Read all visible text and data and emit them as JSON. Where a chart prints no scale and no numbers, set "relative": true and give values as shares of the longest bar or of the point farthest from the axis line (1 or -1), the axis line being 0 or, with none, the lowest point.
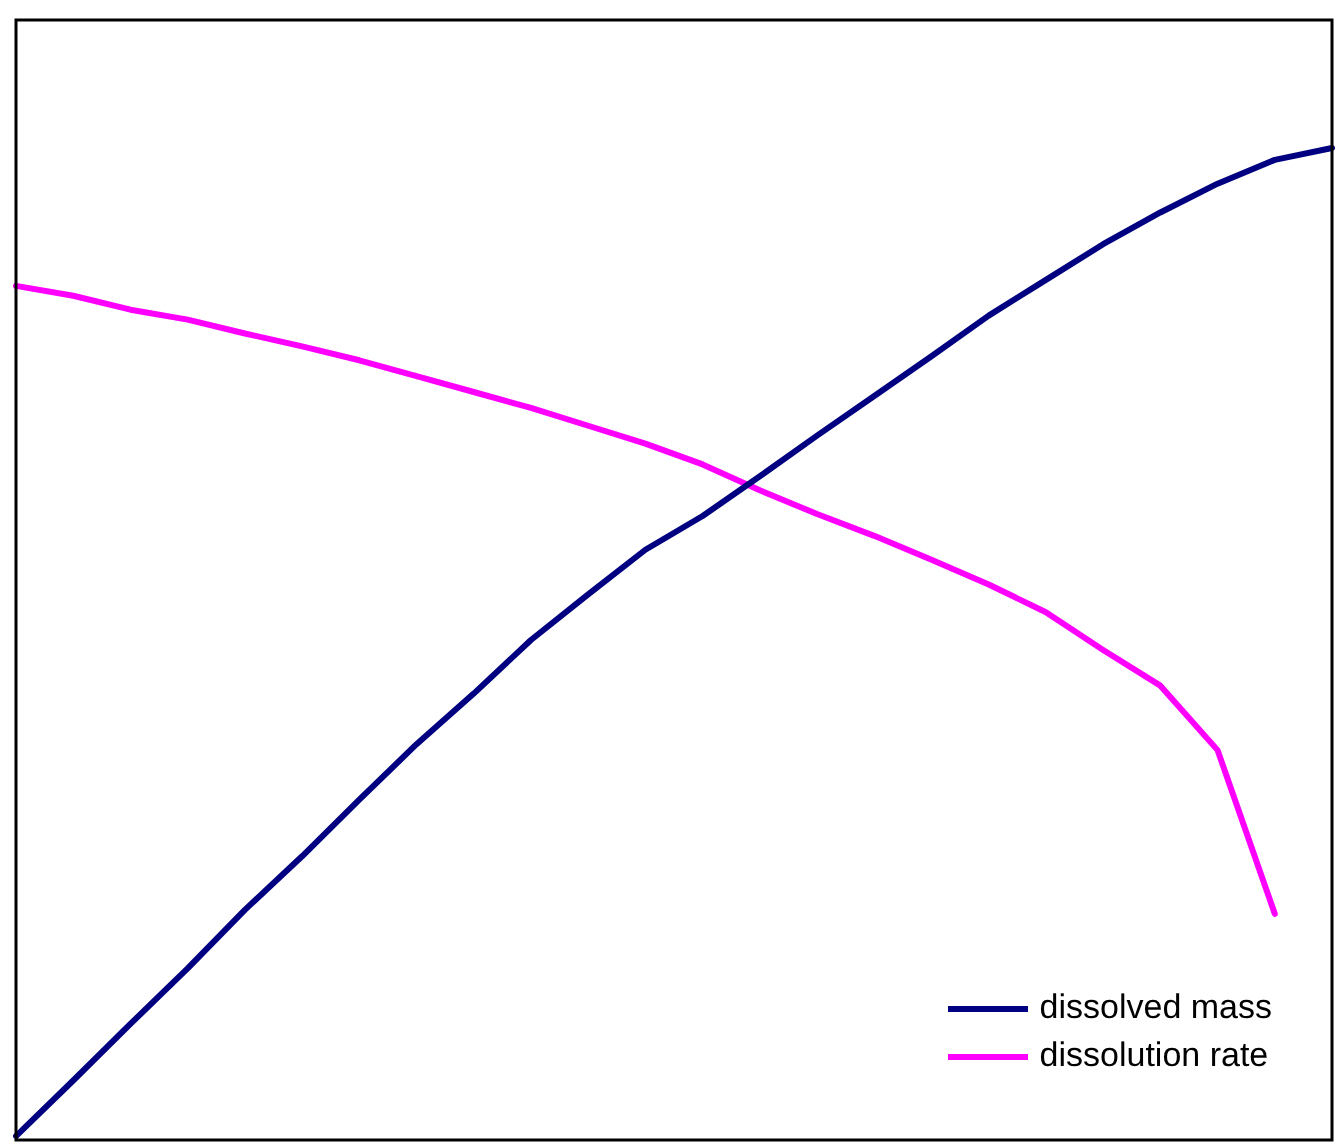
{
  "chart_data": {
    "type": "line",
    "relative": true,
    "legend": "bottom right",
    "marker": "none",
    "line_style": "solid",
    "categories": [
      null,
      null,
      null,
      null,
      null,
      null,
      null,
      null,
      null,
      null,
      null,
      null,
      null,
      null,
      null,
      null,
      null,
      null,
      null,
      null,
      null,
      null,
      null,
      null
    ],
    "series": [
      {
        "name": "dissolved mass",
        "color": "#000080",
        "values": [
          0.004,
          0.06,
          0.117,
          0.173,
          0.232,
          0.286,
          0.343,
          0.399,
          0.45,
          0.504,
          0.55,
          0.595,
          0.629,
          0.669,
          0.71,
          0.75,
          0.79,
          0.831,
          0.867,
          0.903,
          0.935,
          0.964,
          0.988,
          1
        ]
      },
      {
        "name": "dissolution rate",
        "color": "#ff00ff",
        "values": [
          0.861,
          0.851,
          0.837,
          0.827,
          0.813,
          0.8,
          0.786,
          0.77,
          0.754,
          0.738,
          0.72,
          0.702,
          0.681,
          0.655,
          0.631,
          0.609,
          0.585,
          0.56,
          0.532,
          0.494,
          0.458,
          0.393,
          0.228,
          null
        ]
      }
    ]
  }
}
